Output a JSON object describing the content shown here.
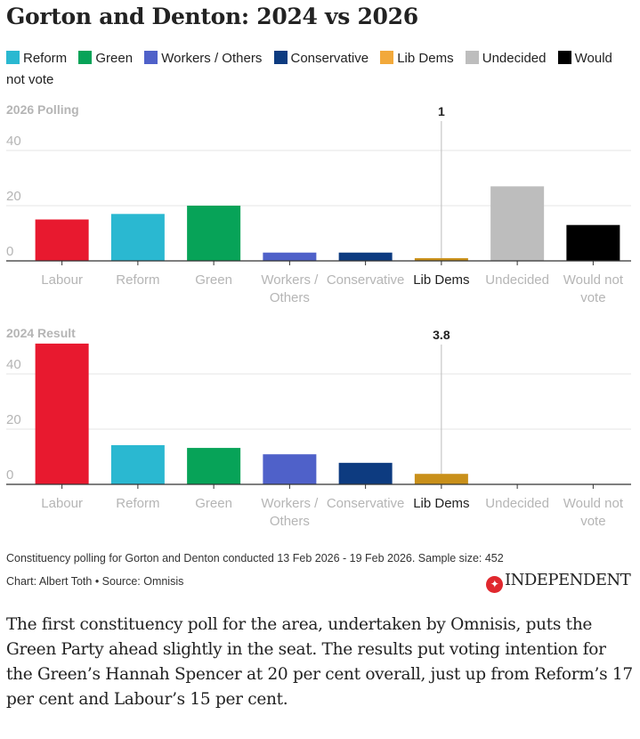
{
  "title": "Gorton and Denton: 2024 vs 2026",
  "legend": [
    {
      "label": "Reform",
      "color": "#2ab8d1"
    },
    {
      "label": "Green",
      "color": "#07a358"
    },
    {
      "label": "Workers / Others",
      "color": "#4f61c9"
    },
    {
      "label": "Conservative",
      "color": "#0d3b80"
    },
    {
      "label": "Lib Dems",
      "color": "#f2a93b"
    },
    {
      "label": "Undecided",
      "color": "#bdbdbd"
    },
    {
      "label": "Would not vote",
      "color": "#000000"
    }
  ],
  "chart_data": [
    {
      "type": "bar",
      "title": "2026 Polling",
      "categories": [
        "Labour",
        "Reform",
        "Green",
        "Workers / Others",
        "Conservative",
        "Lib Dems",
        "Undecided",
        "Would not vote"
      ],
      "values": [
        15,
        17,
        20,
        3,
        3,
        1,
        27,
        13
      ],
      "colors": [
        "#e8192f",
        "#2ab8d1",
        "#07a358",
        "#4f61c9",
        "#0d3b80",
        "#c9901a",
        "#bdbdbd",
        "#000000"
      ],
      "yticks": [
        "0",
        "20",
        "40"
      ],
      "ylim": [
        0,
        50
      ],
      "annotation": {
        "category": "Lib Dems",
        "label": "1"
      },
      "highlight": "Lib Dems"
    },
    {
      "type": "bar",
      "title": "2024 Result",
      "categories": [
        "Labour",
        "Reform",
        "Green",
        "Workers / Others",
        "Conservative",
        "Lib Dems",
        "Undecided",
        "Would not vote"
      ],
      "values": [
        51,
        14.2,
        13.2,
        10.9,
        7.8,
        3.8,
        0,
        0
      ],
      "colors": [
        "#e8192f",
        "#2ab8d1",
        "#07a358",
        "#4f61c9",
        "#0d3b80",
        "#c9901a",
        "#bdbdbd",
        "#000000"
      ],
      "yticks": [
        "0",
        "20",
        "40"
      ],
      "ylim": [
        0,
        50
      ],
      "annotation": {
        "category": "Lib Dems",
        "label": "3.8"
      },
      "highlight": "Lib Dems"
    }
  ],
  "footer": {
    "note": "Constituency polling for Gorton and Denton conducted 13 Feb 2026 - 19 Feb 2026. Sample size: 452",
    "credit": "Chart: Albert Toth • Source: Omnisis",
    "logo": "INDEPENDENT"
  },
  "paragraph": "The first constituency poll for the area, undertaken by Omnisis, puts the Green Party ahead slightly in the seat. The results put voting intention for the Green’s Hannah Spencer at 20 per cent overall, just up from Reform’s 17 per cent and Labour’s 15 per cent."
}
